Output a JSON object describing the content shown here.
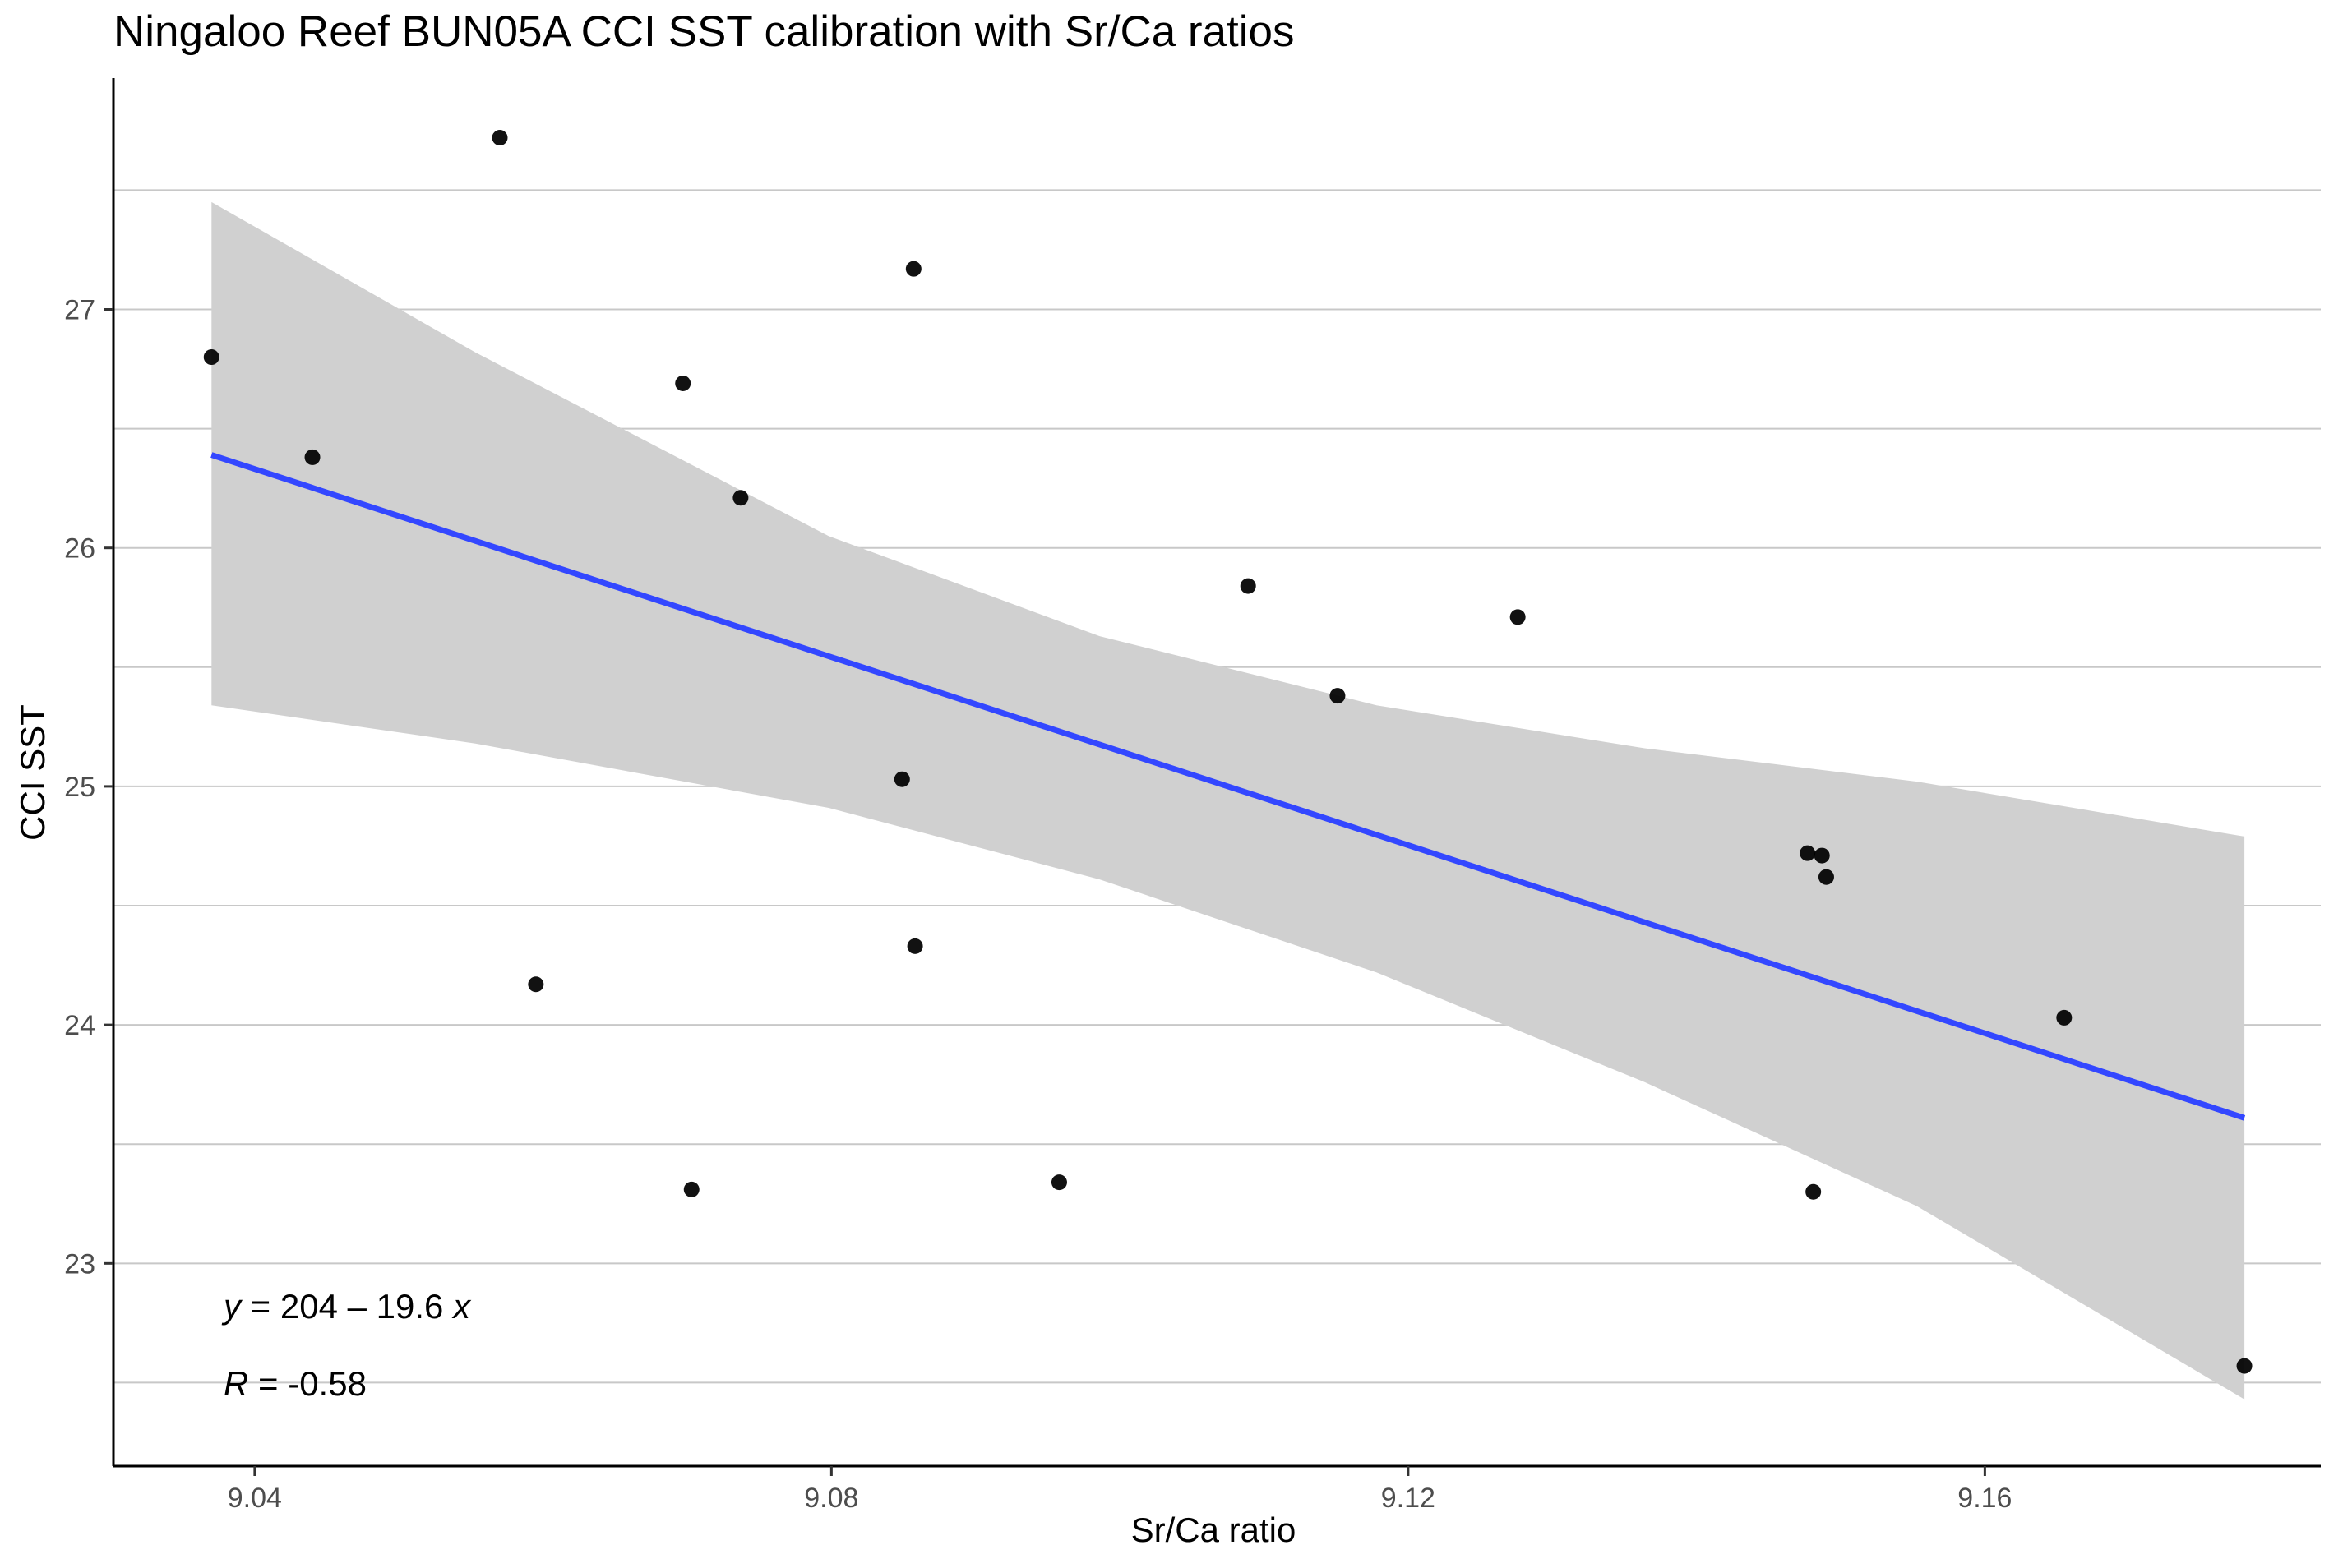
{
  "chart_data": {
    "type": "scatter",
    "title": "Ningaloo Reef BUN05A CCI SST calibration with Sr/Ca ratios",
    "xlabel": "Sr/Ca ratio",
    "ylabel": "CCI SST",
    "xlim": [
      9.0302,
      9.1833
    ],
    "ylim": [
      22.15,
      27.97
    ],
    "xticks": [
      9.04,
      9.08,
      9.12,
      9.16
    ],
    "xtick_labels": [
      "9.04",
      "9.08",
      "9.12",
      "9.16"
    ],
    "yticks": [
      23,
      24,
      25,
      26,
      27
    ],
    "ytick_labels": [
      "23",
      "24",
      "25",
      "26",
      "27"
    ],
    "y_minor_grid": [
      22.5,
      23.5,
      24.5,
      25.5,
      26.5,
      27.5
    ],
    "grid": "horizontal",
    "points": [
      {
        "x": 9.037,
        "y": 26.8
      },
      {
        "x": 9.044,
        "y": 26.38
      },
      {
        "x": 9.057,
        "y": 27.72
      },
      {
        "x": 9.0595,
        "y": 24.17
      },
      {
        "x": 9.0697,
        "y": 26.69
      },
      {
        "x": 9.0703,
        "y": 23.31
      },
      {
        "x": 9.0737,
        "y": 26.21
      },
      {
        "x": 9.0849,
        "y": 25.03
      },
      {
        "x": 9.0857,
        "y": 27.17
      },
      {
        "x": 9.0858,
        "y": 24.33
      },
      {
        "x": 9.0958,
        "y": 23.34
      },
      {
        "x": 9.1089,
        "y": 25.84
      },
      {
        "x": 9.1151,
        "y": 25.38
      },
      {
        "x": 9.1276,
        "y": 25.71
      },
      {
        "x": 9.1477,
        "y": 24.72
      },
      {
        "x": 9.1481,
        "y": 23.3
      },
      {
        "x": 9.1487,
        "y": 24.71
      },
      {
        "x": 9.149,
        "y": 24.62
      },
      {
        "x": 9.1655,
        "y": 24.03
      },
      {
        "x": 9.178,
        "y": 22.57
      }
    ],
    "fit": {
      "type": "linear",
      "x": [
        9.037,
        9.178
      ],
      "y": [
        26.39,
        23.61
      ]
    },
    "confidence_band": {
      "x": [
        9.037,
        9.0553,
        9.0798,
        9.0986,
        9.1178,
        9.1364,
        9.1553,
        9.178
      ],
      "upper": [
        27.45,
        26.82,
        26.05,
        25.63,
        25.34,
        25.16,
        25.02,
        24.79
      ],
      "lower": [
        25.34,
        25.18,
        24.91,
        24.61,
        24.22,
        23.76,
        23.24,
        22.43
      ]
    },
    "annotations": {
      "equation_var_y": "y",
      "equation_body": " = 204 – 19.6 ",
      "equation_var_x": "x",
      "r_var": "R",
      "r_body": " = -0.58"
    },
    "colors": {
      "fit_line": "#3347ff",
      "band": "#d0d0d0",
      "points": "#000000",
      "grid": "#c8c8c8",
      "axis": "#000000"
    }
  }
}
